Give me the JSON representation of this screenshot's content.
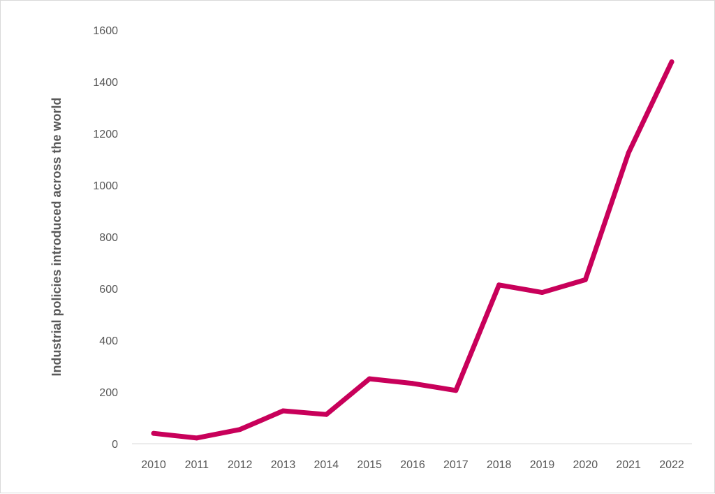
{
  "chart_data": {
    "type": "line",
    "title": "",
    "xlabel": "",
    "ylabel": "Industrial policies introduced across the world",
    "x": [
      "2010",
      "2011",
      "2012",
      "2013",
      "2014",
      "2015",
      "2016",
      "2017",
      "2018",
      "2019",
      "2020",
      "2021",
      "2022"
    ],
    "series": [
      {
        "values": [
          40,
          22,
          55,
          127,
          113,
          251,
          233,
          206,
          614,
          585,
          634,
          1125,
          1477
        ],
        "color": "#c8005a"
      }
    ],
    "yticks": [
      "0",
      "200",
      "400",
      "600",
      "800",
      "1000",
      "1200",
      "1400",
      "1600"
    ],
    "ylim": [
      0,
      1600
    ],
    "grid": false,
    "legend": "none"
  }
}
